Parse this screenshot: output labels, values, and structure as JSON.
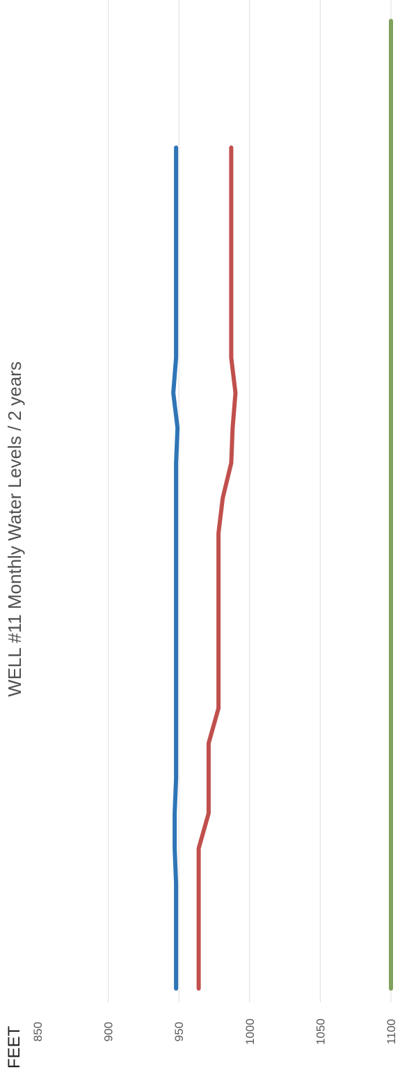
{
  "chart_data": {
    "type": "line",
    "title": "WELL #11 Monthly Water Levels / 2 years",
    "unit_label": "FEET",
    "orientation": "rotated-90",
    "y_axis": {
      "min": 850,
      "max": 1100,
      "ticks": [
        850,
        900,
        950,
        1000,
        1050,
        1100
      ],
      "tick_labels": [
        "850",
        "900",
        "950",
        "1000",
        "1050",
        "1100"
      ]
    },
    "grid": true,
    "legend": "none",
    "x_count": 25,
    "series": [
      {
        "color": "#2e75b6",
        "values": [
          948,
          948,
          948,
          948,
          948,
          948,
          948,
          946,
          949,
          948,
          948,
          948,
          948,
          948,
          948,
          948,
          948,
          948,
          948,
          947,
          947,
          948,
          948,
          948,
          948
        ]
      },
      {
        "color": "#c0504d",
        "values": [
          987,
          987,
          987,
          987,
          987,
          987,
          987,
          990,
          988,
          987,
          981,
          978,
          978,
          978,
          978,
          978,
          978,
          971,
          971,
          971,
          964,
          964,
          964,
          964,
          964
        ]
      },
      {
        "color": "#7fa15a",
        "values": [
          1100,
          1100,
          1100,
          1100,
          1100,
          1100,
          1100,
          1100,
          1100,
          1100,
          1100,
          1100,
          1100,
          1100,
          1100,
          1100,
          1100,
          1100,
          1100,
          1100,
          1100,
          1100,
          1100,
          1100,
          1100
        ]
      }
    ]
  }
}
